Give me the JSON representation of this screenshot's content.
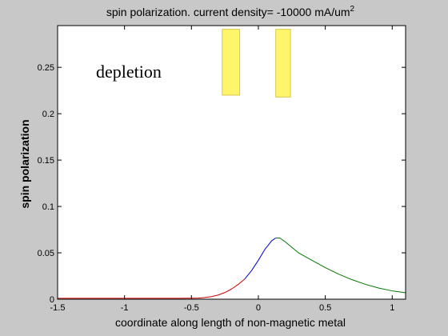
{
  "chart_data": {
    "type": "line",
    "title": "spin polarization.  current density= -10000 mA/um",
    "title_superscript": "2",
    "xlabel": "coordinate along length of non-magnetic metal",
    "ylabel": "spin polarization",
    "xlim": [
      -1.5,
      1.1
    ],
    "ylim": [
      0,
      0.295
    ],
    "grid": false,
    "x_ticks": [
      -1.5,
      -1,
      -0.5,
      0,
      0.5,
      1
    ],
    "x_tick_labels": [
      "-1.5",
      "-1",
      "-0.5",
      "0",
      "0.5",
      "1"
    ],
    "y_ticks": [
      0,
      0.05,
      0.1,
      0.15,
      0.2,
      0.25
    ],
    "y_tick_labels": [
      "0",
      "0.05",
      "0.1",
      "0.15",
      "0.2",
      "0.25"
    ],
    "annotation": "depletion",
    "colors": {
      "background": "#c8c8c8",
      "plot_area": "#ffffff",
      "contact_fill": "#fff56a",
      "contact_stroke": "#d9c84a"
    },
    "contacts": [
      {
        "x": [
          -0.27,
          -0.14
        ],
        "y": [
          0.22,
          0.291
        ]
      },
      {
        "x": [
          0.13,
          0.24
        ],
        "y": [
          0.218,
          0.291
        ]
      }
    ],
    "series": [
      {
        "color": "#cc0000",
        "x": [
          -1.5,
          -1.2,
          -0.9,
          -0.6,
          -0.45,
          -0.4,
          -0.35,
          -0.3,
          -0.25,
          -0.2,
          -0.15,
          -0.1
        ],
        "y": [
          0.001,
          0.001,
          0.001,
          0.001,
          0.0012,
          0.0018,
          0.0028,
          0.0045,
          0.0072,
          0.011,
          0.016,
          0.022
        ]
      },
      {
        "color": "#0000cc",
        "x": [
          -0.1,
          -0.05,
          0,
          0.05,
          0.1,
          0.13
        ],
        "y": [
          0.022,
          0.031,
          0.042,
          0.054,
          0.063,
          0.066
        ]
      },
      {
        "color": "#007700",
        "x": [
          0.13,
          0.16,
          0.2,
          0.25,
          0.3,
          0.4,
          0.5,
          0.6,
          0.7,
          0.8,
          0.9,
          1.0,
          1.1
        ],
        "y": [
          0.066,
          0.066,
          0.062,
          0.056,
          0.05,
          0.042,
          0.034,
          0.027,
          0.021,
          0.016,
          0.012,
          0.009,
          0.007
        ]
      }
    ]
  }
}
